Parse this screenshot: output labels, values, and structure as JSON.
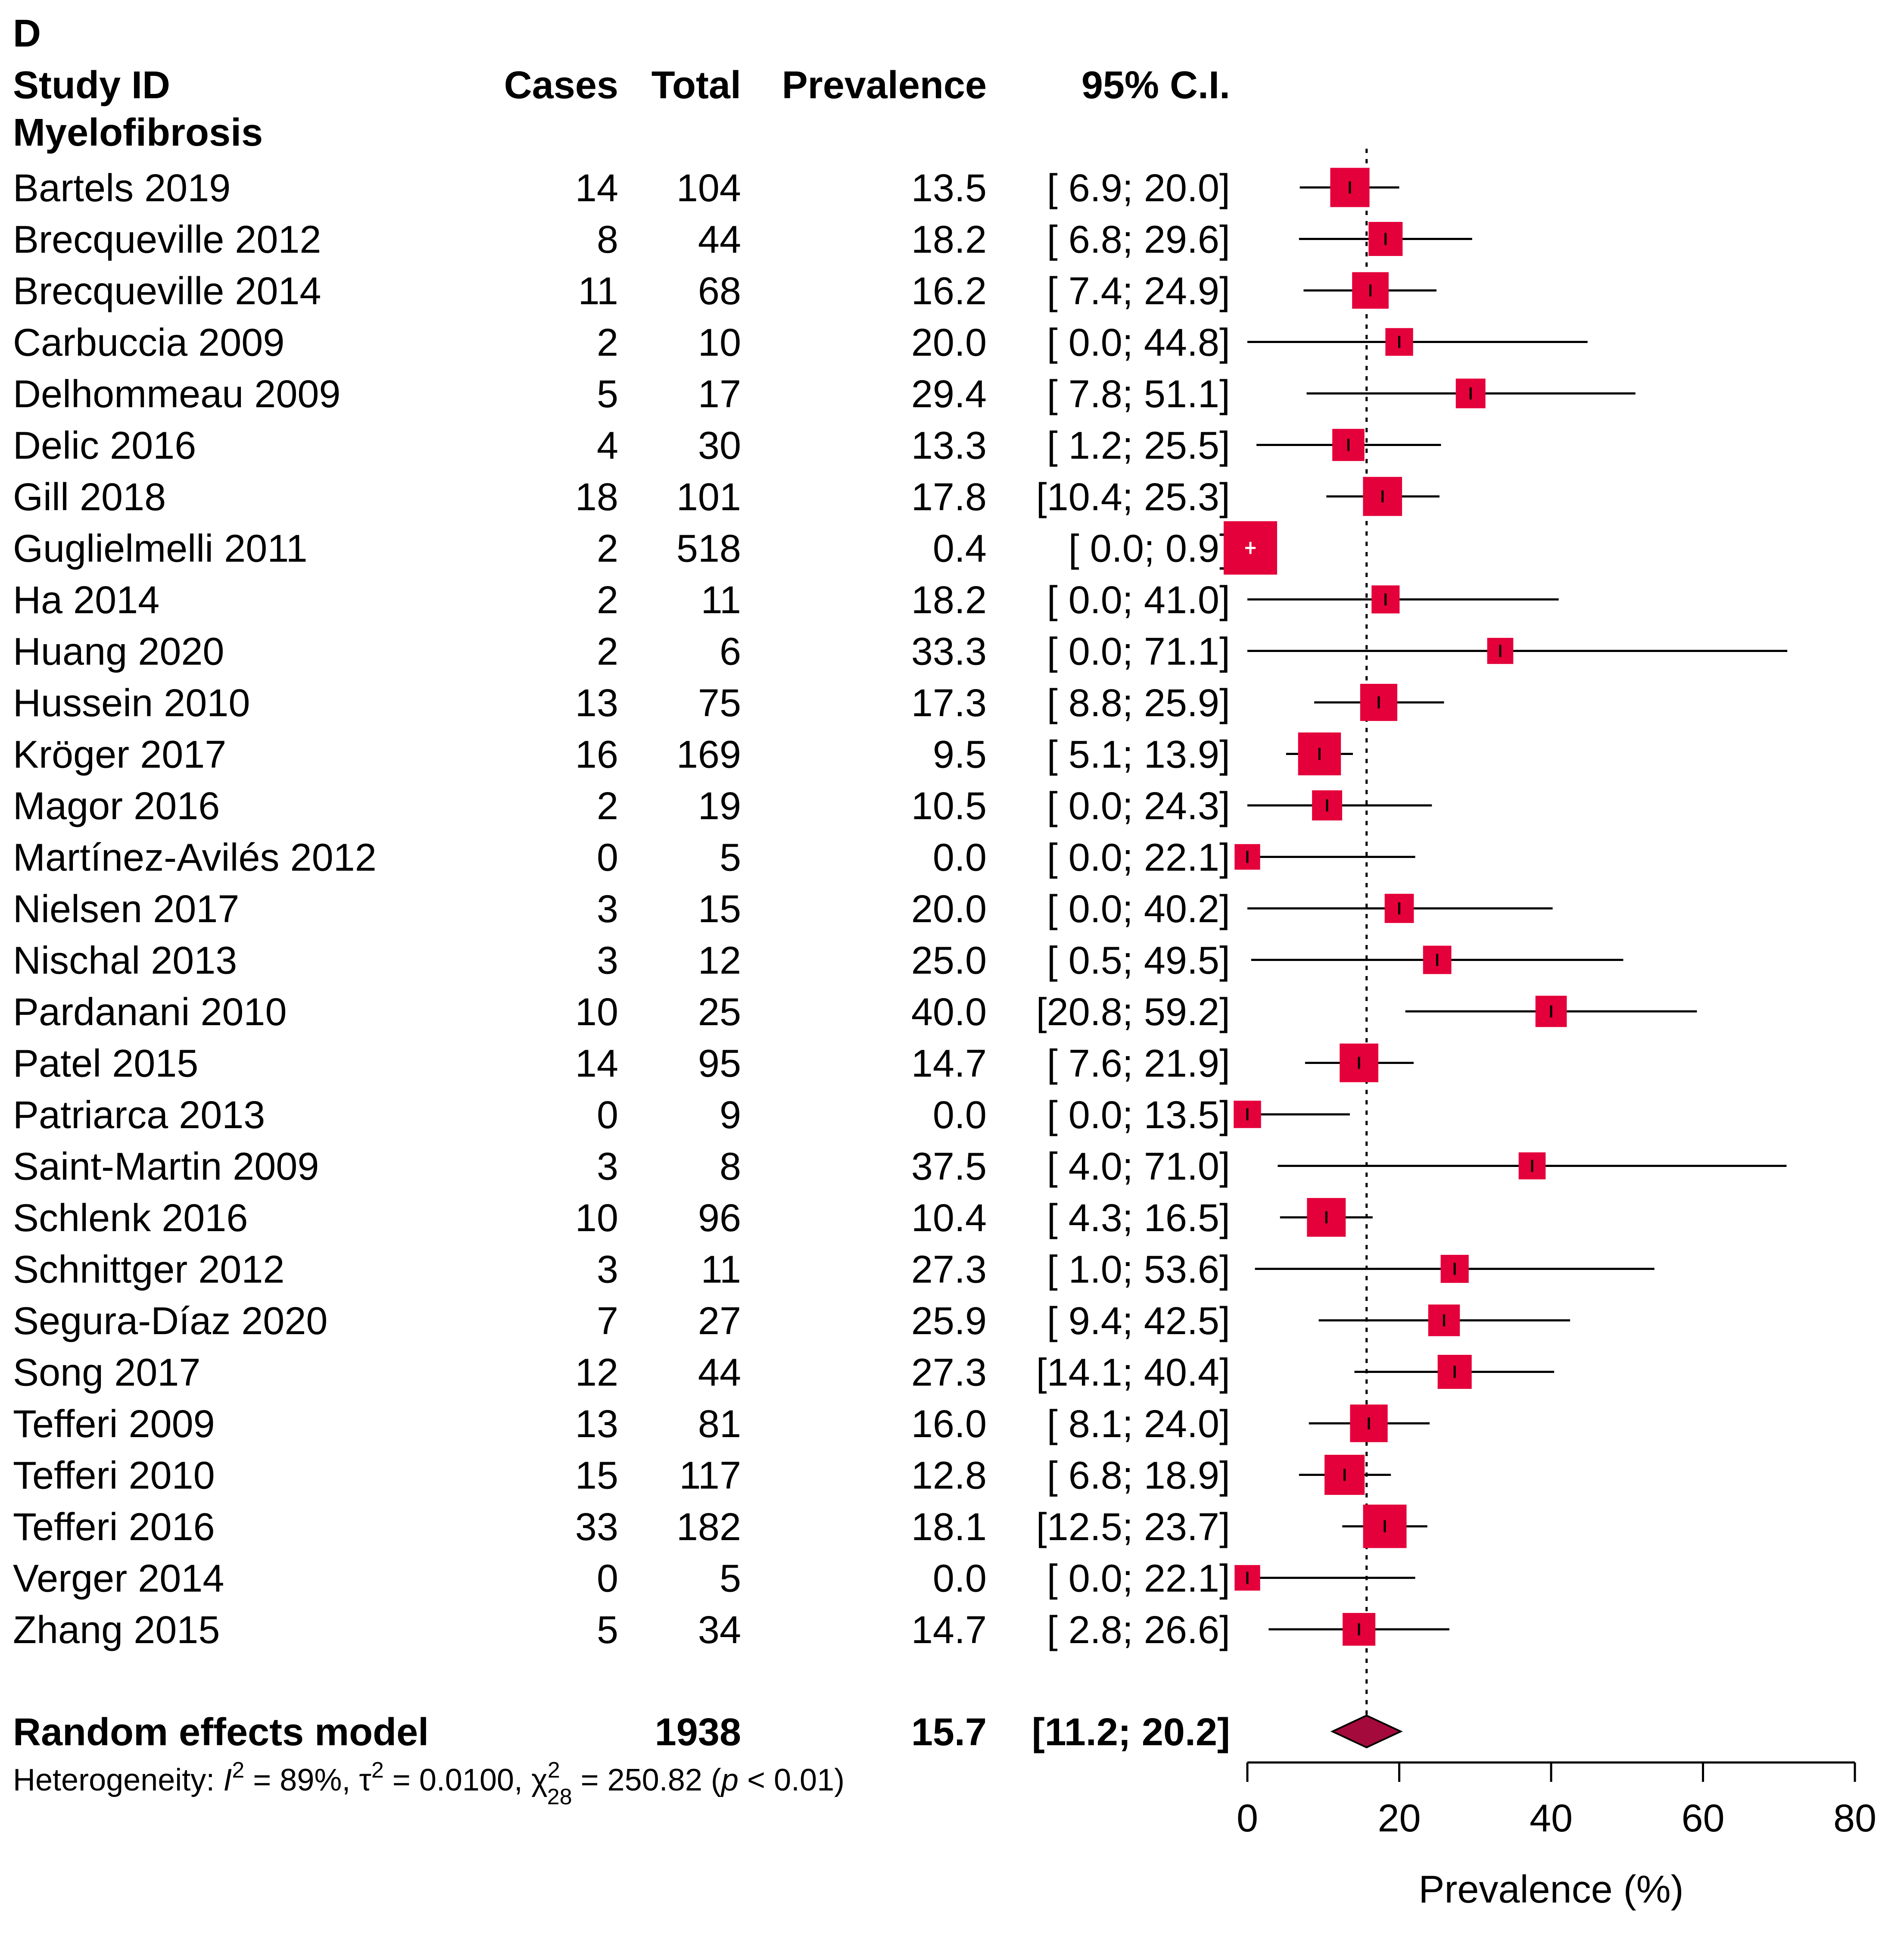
{
  "panel_label": "D",
  "headers": {
    "study": "Study ID",
    "cases": "Cases",
    "total": "Total",
    "prevalence": "Prevalence",
    "ci": "95% C.I."
  },
  "subgroup_label": "Myelofibrosis",
  "chart_data": {
    "type": "forest",
    "title": "Myelofibrosis",
    "xlabel": "Prevalence (%)",
    "xlim": [
      0,
      80
    ],
    "xticks": [
      0,
      20,
      40,
      60,
      80
    ],
    "reference_line": 15.7,
    "colors": {
      "box": "#E4003A",
      "diamond": "#A50A3C",
      "line": "#000000"
    },
    "studies": [
      {
        "study": "Bartels 2019",
        "cases": "14",
        "total": "104",
        "prevalence": "13.5",
        "ci_text": "[ 6.9; 20.0]",
        "est": 13.5,
        "lo": 6.9,
        "hi": 20.0
      },
      {
        "study": "Brecqueville 2012",
        "cases": "8",
        "total": "44",
        "prevalence": "18.2",
        "ci_text": "[ 6.8; 29.6]",
        "est": 18.2,
        "lo": 6.8,
        "hi": 29.6
      },
      {
        "study": "Brecqueville 2014",
        "cases": "11",
        "total": "68",
        "prevalence": "16.2",
        "ci_text": "[ 7.4; 24.9]",
        "est": 16.2,
        "lo": 7.4,
        "hi": 24.9
      },
      {
        "study": "Carbuccia 2009",
        "cases": "2",
        "total": "10",
        "prevalence": "20.0",
        "ci_text": "[ 0.0; 44.8]",
        "est": 20.0,
        "lo": 0.0,
        "hi": 44.8
      },
      {
        "study": "Delhommeau 2009",
        "cases": "5",
        "total": "17",
        "prevalence": "29.4",
        "ci_text": "[ 7.8; 51.1]",
        "est": 29.4,
        "lo": 7.8,
        "hi": 51.1
      },
      {
        "study": "Delic 2016",
        "cases": "4",
        "total": "30",
        "prevalence": "13.3",
        "ci_text": "[ 1.2; 25.5]",
        "est": 13.3,
        "lo": 1.2,
        "hi": 25.5
      },
      {
        "study": "Gill 2018",
        "cases": "18",
        "total": "101",
        "prevalence": "17.8",
        "ci_text": "[10.4; 25.3]",
        "est": 17.8,
        "lo": 10.4,
        "hi": 25.3
      },
      {
        "study": "Guglielmelli 2011",
        "cases": "2",
        "total": "518",
        "prevalence": "0.4",
        "ci_text": "[ 0.0;  0.9]",
        "est": 0.4,
        "lo": 0.0,
        "hi": 0.9
      },
      {
        "study": "Ha 2014",
        "cases": "2",
        "total": "11",
        "prevalence": "18.2",
        "ci_text": "[ 0.0; 41.0]",
        "est": 18.2,
        "lo": 0.0,
        "hi": 41.0
      },
      {
        "study": "Huang 2020",
        "cases": "2",
        "total": "6",
        "prevalence": "33.3",
        "ci_text": "[ 0.0; 71.1]",
        "est": 33.3,
        "lo": 0.0,
        "hi": 71.1
      },
      {
        "study": "Hussein 2010",
        "cases": "13",
        "total": "75",
        "prevalence": "17.3",
        "ci_text": "[ 8.8; 25.9]",
        "est": 17.3,
        "lo": 8.8,
        "hi": 25.9
      },
      {
        "study": "Kröger 2017",
        "cases": "16",
        "total": "169",
        "prevalence": "9.5",
        "ci_text": "[ 5.1; 13.9]",
        "est": 9.5,
        "lo": 5.1,
        "hi": 13.9
      },
      {
        "study": "Magor 2016",
        "cases": "2",
        "total": "19",
        "prevalence": "10.5",
        "ci_text": "[ 0.0; 24.3]",
        "est": 10.5,
        "lo": 0.0,
        "hi": 24.3
      },
      {
        "study": "Martínez-Avilés 2012",
        "cases": "0",
        "total": "5",
        "prevalence": "0.0",
        "ci_text": "[ 0.0; 22.1]",
        "est": 0.0,
        "lo": 0.0,
        "hi": 22.1
      },
      {
        "study": "Nielsen 2017",
        "cases": "3",
        "total": "15",
        "prevalence": "20.0",
        "ci_text": "[ 0.0; 40.2]",
        "est": 20.0,
        "lo": 0.0,
        "hi": 40.2
      },
      {
        "study": "Nischal 2013",
        "cases": "3",
        "total": "12",
        "prevalence": "25.0",
        "ci_text": "[ 0.5; 49.5]",
        "est": 25.0,
        "lo": 0.5,
        "hi": 49.5
      },
      {
        "study": "Pardanani 2010",
        "cases": "10",
        "total": "25",
        "prevalence": "40.0",
        "ci_text": "[20.8; 59.2]",
        "est": 40.0,
        "lo": 20.8,
        "hi": 59.2
      },
      {
        "study": "Patel 2015",
        "cases": "14",
        "total": "95",
        "prevalence": "14.7",
        "ci_text": "[ 7.6; 21.9]",
        "est": 14.7,
        "lo": 7.6,
        "hi": 21.9
      },
      {
        "study": "Patriarca 2013",
        "cases": "0",
        "total": "9",
        "prevalence": "0.0",
        "ci_text": "[ 0.0; 13.5]",
        "est": 0.0,
        "lo": 0.0,
        "hi": 13.5
      },
      {
        "study": "Saint-Martin 2009",
        "cases": "3",
        "total": "8",
        "prevalence": "37.5",
        "ci_text": "[ 4.0; 71.0]",
        "est": 37.5,
        "lo": 4.0,
        "hi": 71.0
      },
      {
        "study": "Schlenk 2016",
        "cases": "10",
        "total": "96",
        "prevalence": "10.4",
        "ci_text": "[ 4.3; 16.5]",
        "est": 10.4,
        "lo": 4.3,
        "hi": 16.5
      },
      {
        "study": "Schnittger 2012",
        "cases": "3",
        "total": "11",
        "prevalence": "27.3",
        "ci_text": "[ 1.0; 53.6]",
        "est": 27.3,
        "lo": 1.0,
        "hi": 53.6
      },
      {
        "study": "Segura-Díaz 2020",
        "cases": "7",
        "total": "27",
        "prevalence": "25.9",
        "ci_text": "[ 9.4; 42.5]",
        "est": 25.9,
        "lo": 9.4,
        "hi": 42.5
      },
      {
        "study": "Song 2017",
        "cases": "12",
        "total": "44",
        "prevalence": "27.3",
        "ci_text": "[14.1; 40.4]",
        "est": 27.3,
        "lo": 14.1,
        "hi": 40.4
      },
      {
        "study": "Tefferi 2009",
        "cases": "13",
        "total": "81",
        "prevalence": "16.0",
        "ci_text": "[ 8.1; 24.0]",
        "est": 16.0,
        "lo": 8.1,
        "hi": 24.0
      },
      {
        "study": "Tefferi 2010",
        "cases": "15",
        "total": "117",
        "prevalence": "12.8",
        "ci_text": "[ 6.8; 18.9]",
        "est": 12.8,
        "lo": 6.8,
        "hi": 18.9
      },
      {
        "study": "Tefferi 2016",
        "cases": "33",
        "total": "182",
        "prevalence": "18.1",
        "ci_text": "[12.5; 23.7]",
        "est": 18.1,
        "lo": 12.5,
        "hi": 23.7
      },
      {
        "study": "Verger 2014",
        "cases": "0",
        "total": "5",
        "prevalence": "0.0",
        "ci_text": "[ 0.0; 22.1]",
        "est": 0.0,
        "lo": 0.0,
        "hi": 22.1
      },
      {
        "study": "Zhang 2015",
        "cases": "5",
        "total": "34",
        "prevalence": "14.7",
        "ci_text": "[ 2.8; 26.6]",
        "est": 14.7,
        "lo": 2.8,
        "hi": 26.6
      }
    ],
    "summary": {
      "label": "Random effects model",
      "total": "1938",
      "prevalence": "15.7",
      "ci_text": "[11.2; 20.2]",
      "est": 15.7,
      "lo": 11.2,
      "hi": 20.2
    },
    "heterogeneity": {
      "prefix": "Heterogeneity: ",
      "i2_symbol": "I",
      "sup2": "2",
      "i2_value": " = 89%, ",
      "tau_symbol": "τ",
      "tau_value": " = 0.0100, ",
      "chi_symbol": "χ",
      "chi_df": "28",
      "chi_value": " = 250.82 (",
      "p_symbol": "p",
      "p_value": " < 0.01)"
    }
  }
}
